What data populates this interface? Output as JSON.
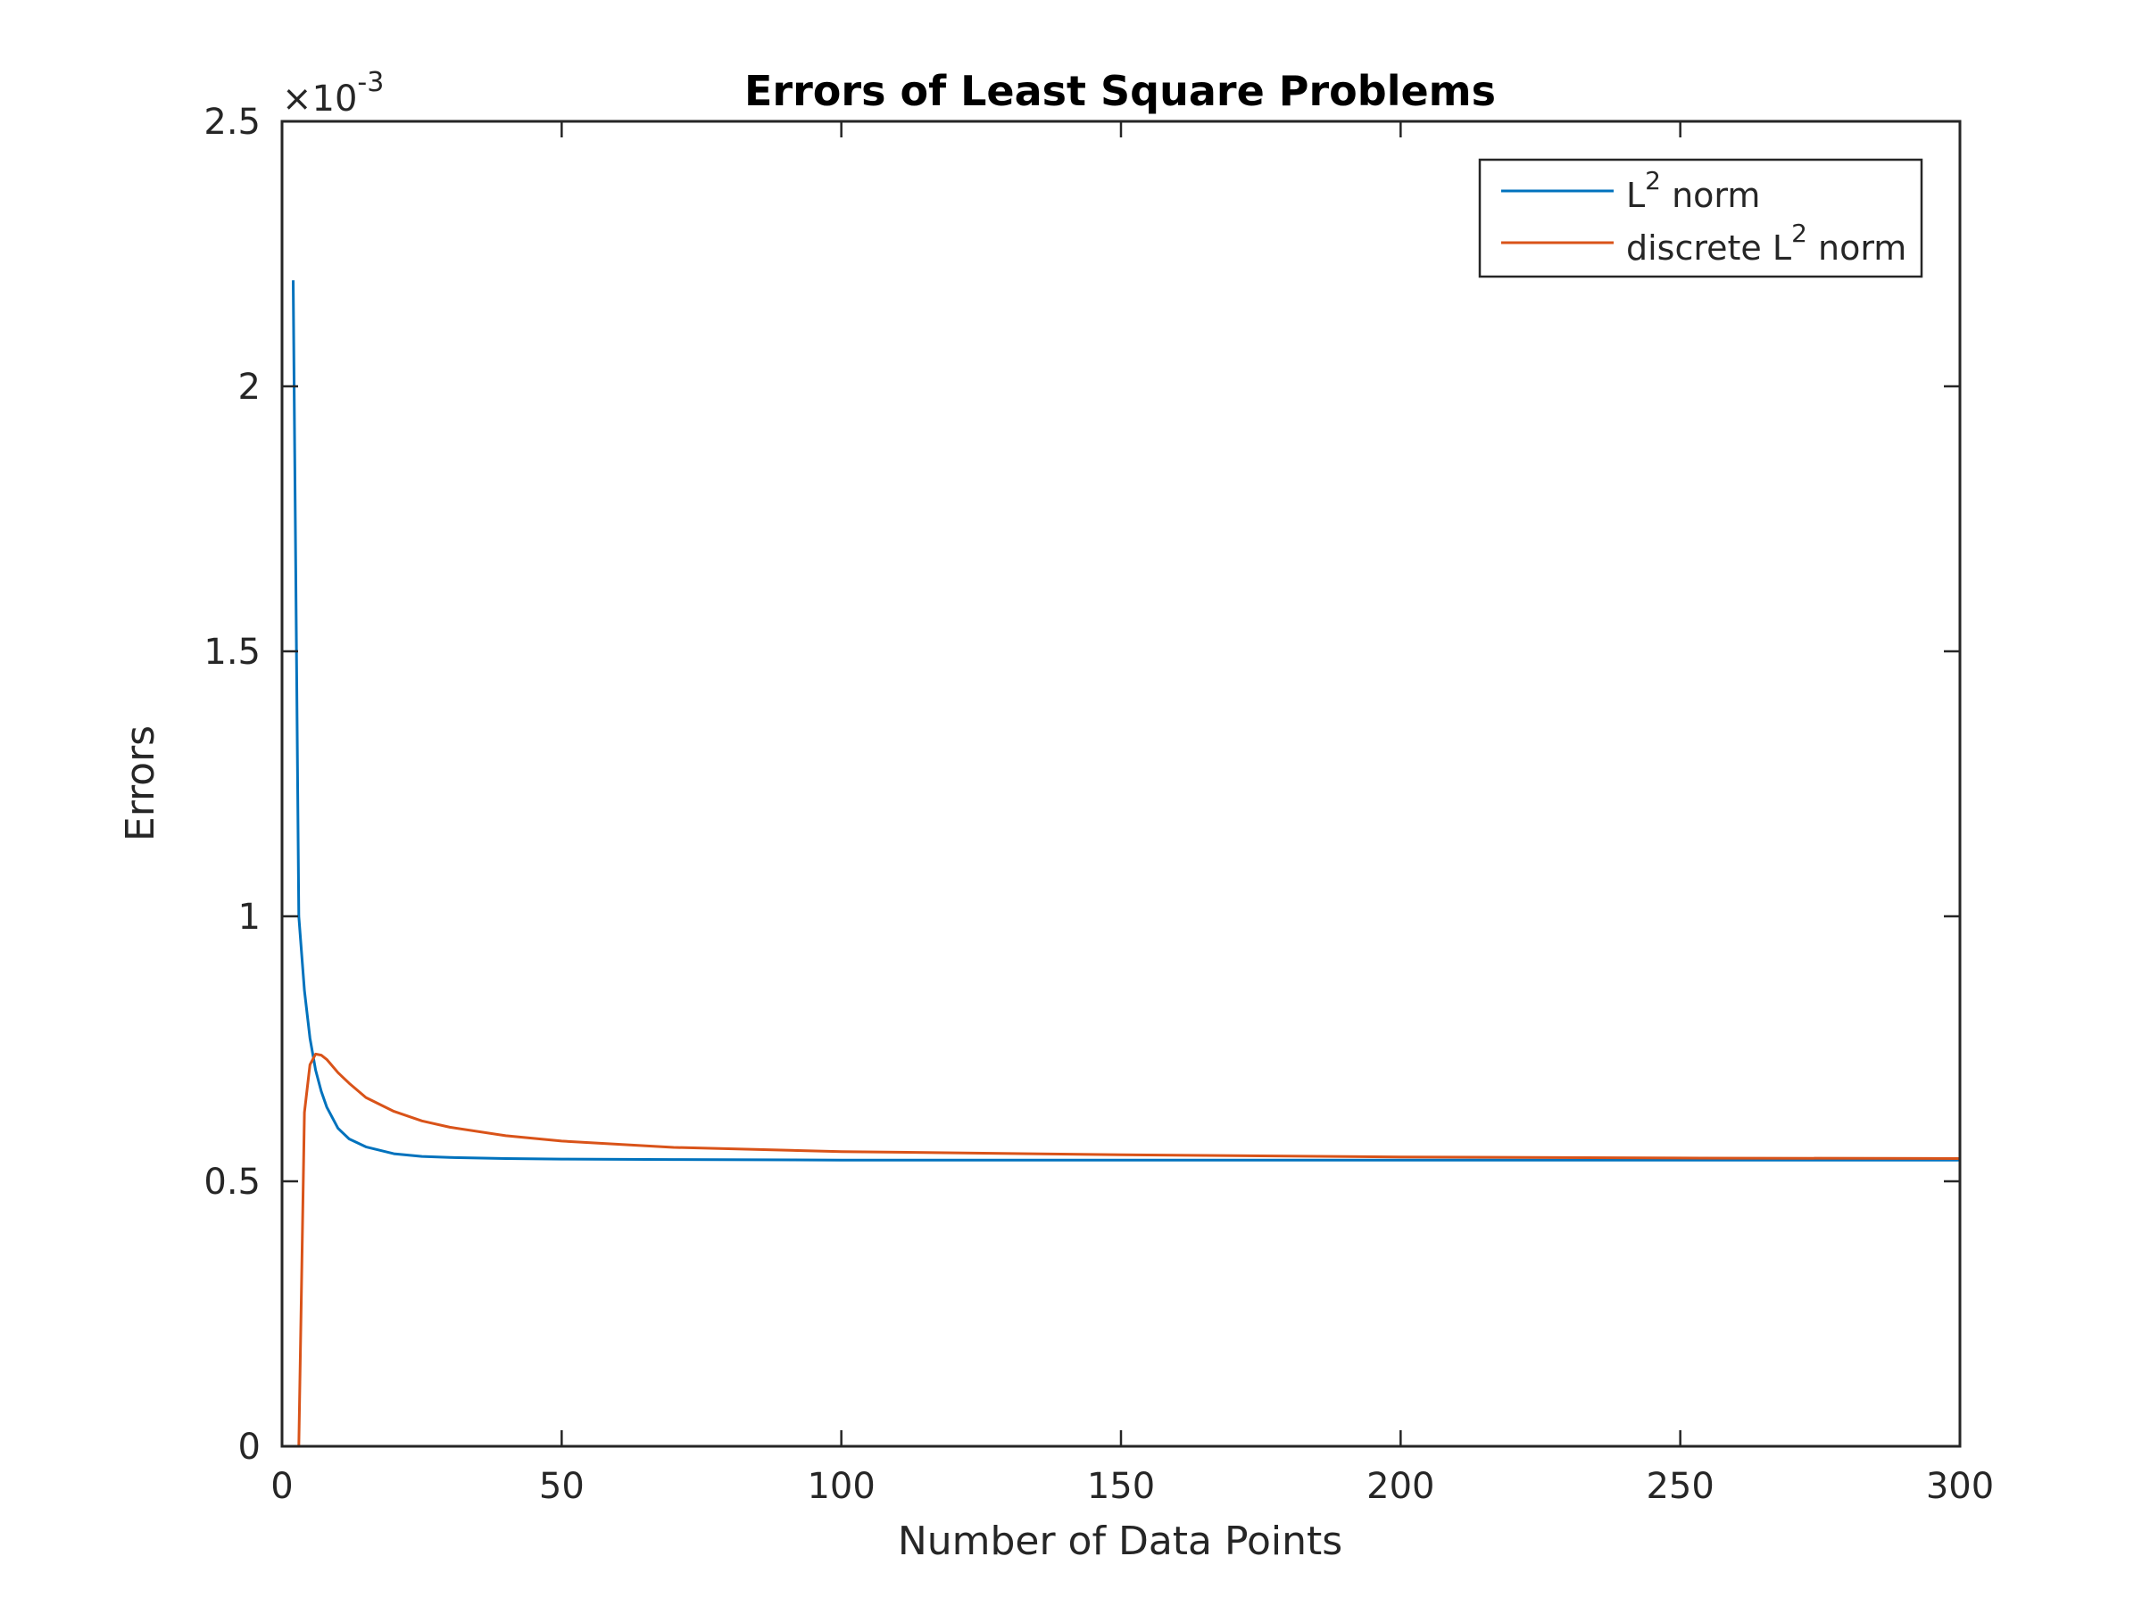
{
  "chart_data": {
    "type": "line",
    "title": "Errors of Least Square Problems",
    "xlabel": "Number of Data Points",
    "ylabel": "Errors",
    "exponent_label": "×10",
    "exponent_power": "-3",
    "xlim": [
      0,
      300
    ],
    "ylim": [
      0,
      0.0025
    ],
    "xticks": [
      0,
      50,
      100,
      150,
      200,
      250,
      300
    ],
    "xtick_labels": [
      "0",
      "50",
      "100",
      "150",
      "200",
      "250",
      "300"
    ],
    "yticks": [
      0,
      0.0005,
      0.001,
      0.0015,
      0.002,
      0.0025
    ],
    "ytick_labels": [
      "0",
      "0.5",
      "1",
      "1.5",
      "2",
      "2.5"
    ],
    "grid": false,
    "legend_position": "top-right",
    "series": [
      {
        "name": "L² norm",
        "legend_base": "L",
        "legend_sup": "2",
        "legend_suffix": " norm",
        "color": "#0072BD",
        "x": [
          2,
          3,
          4,
          5,
          6,
          7,
          8,
          10,
          12,
          15,
          20,
          25,
          30,
          40,
          50,
          70,
          100,
          150,
          200,
          250,
          300
        ],
        "y": [
          0.0022,
          0.001,
          0.00086,
          0.00077,
          0.00071,
          0.00067,
          0.00064,
          0.0006,
          0.00058,
          0.000565,
          0.000552,
          0.000547,
          0.000545,
          0.000543,
          0.000542,
          0.000541,
          0.00054,
          0.00054,
          0.00054,
          0.00054,
          0.00054
        ]
      },
      {
        "name": "discrete L² norm",
        "legend_base": "discrete L",
        "legend_sup": "2",
        "legend_suffix": " norm",
        "color": "#D95319",
        "x": [
          3,
          4,
          5,
          6,
          7,
          8,
          10,
          12,
          15,
          20,
          25,
          30,
          40,
          50,
          70,
          100,
          150,
          200,
          250,
          300
        ],
        "y": [
          0,
          0.00063,
          0.00072,
          0.00074,
          0.000738,
          0.00073,
          0.000705,
          0.000685,
          0.000658,
          0.000632,
          0.000614,
          0.000602,
          0.000586,
          0.000576,
          0.000564,
          0.000556,
          0.00055,
          0.000546,
          0.000544,
          0.000543
        ]
      }
    ]
  }
}
